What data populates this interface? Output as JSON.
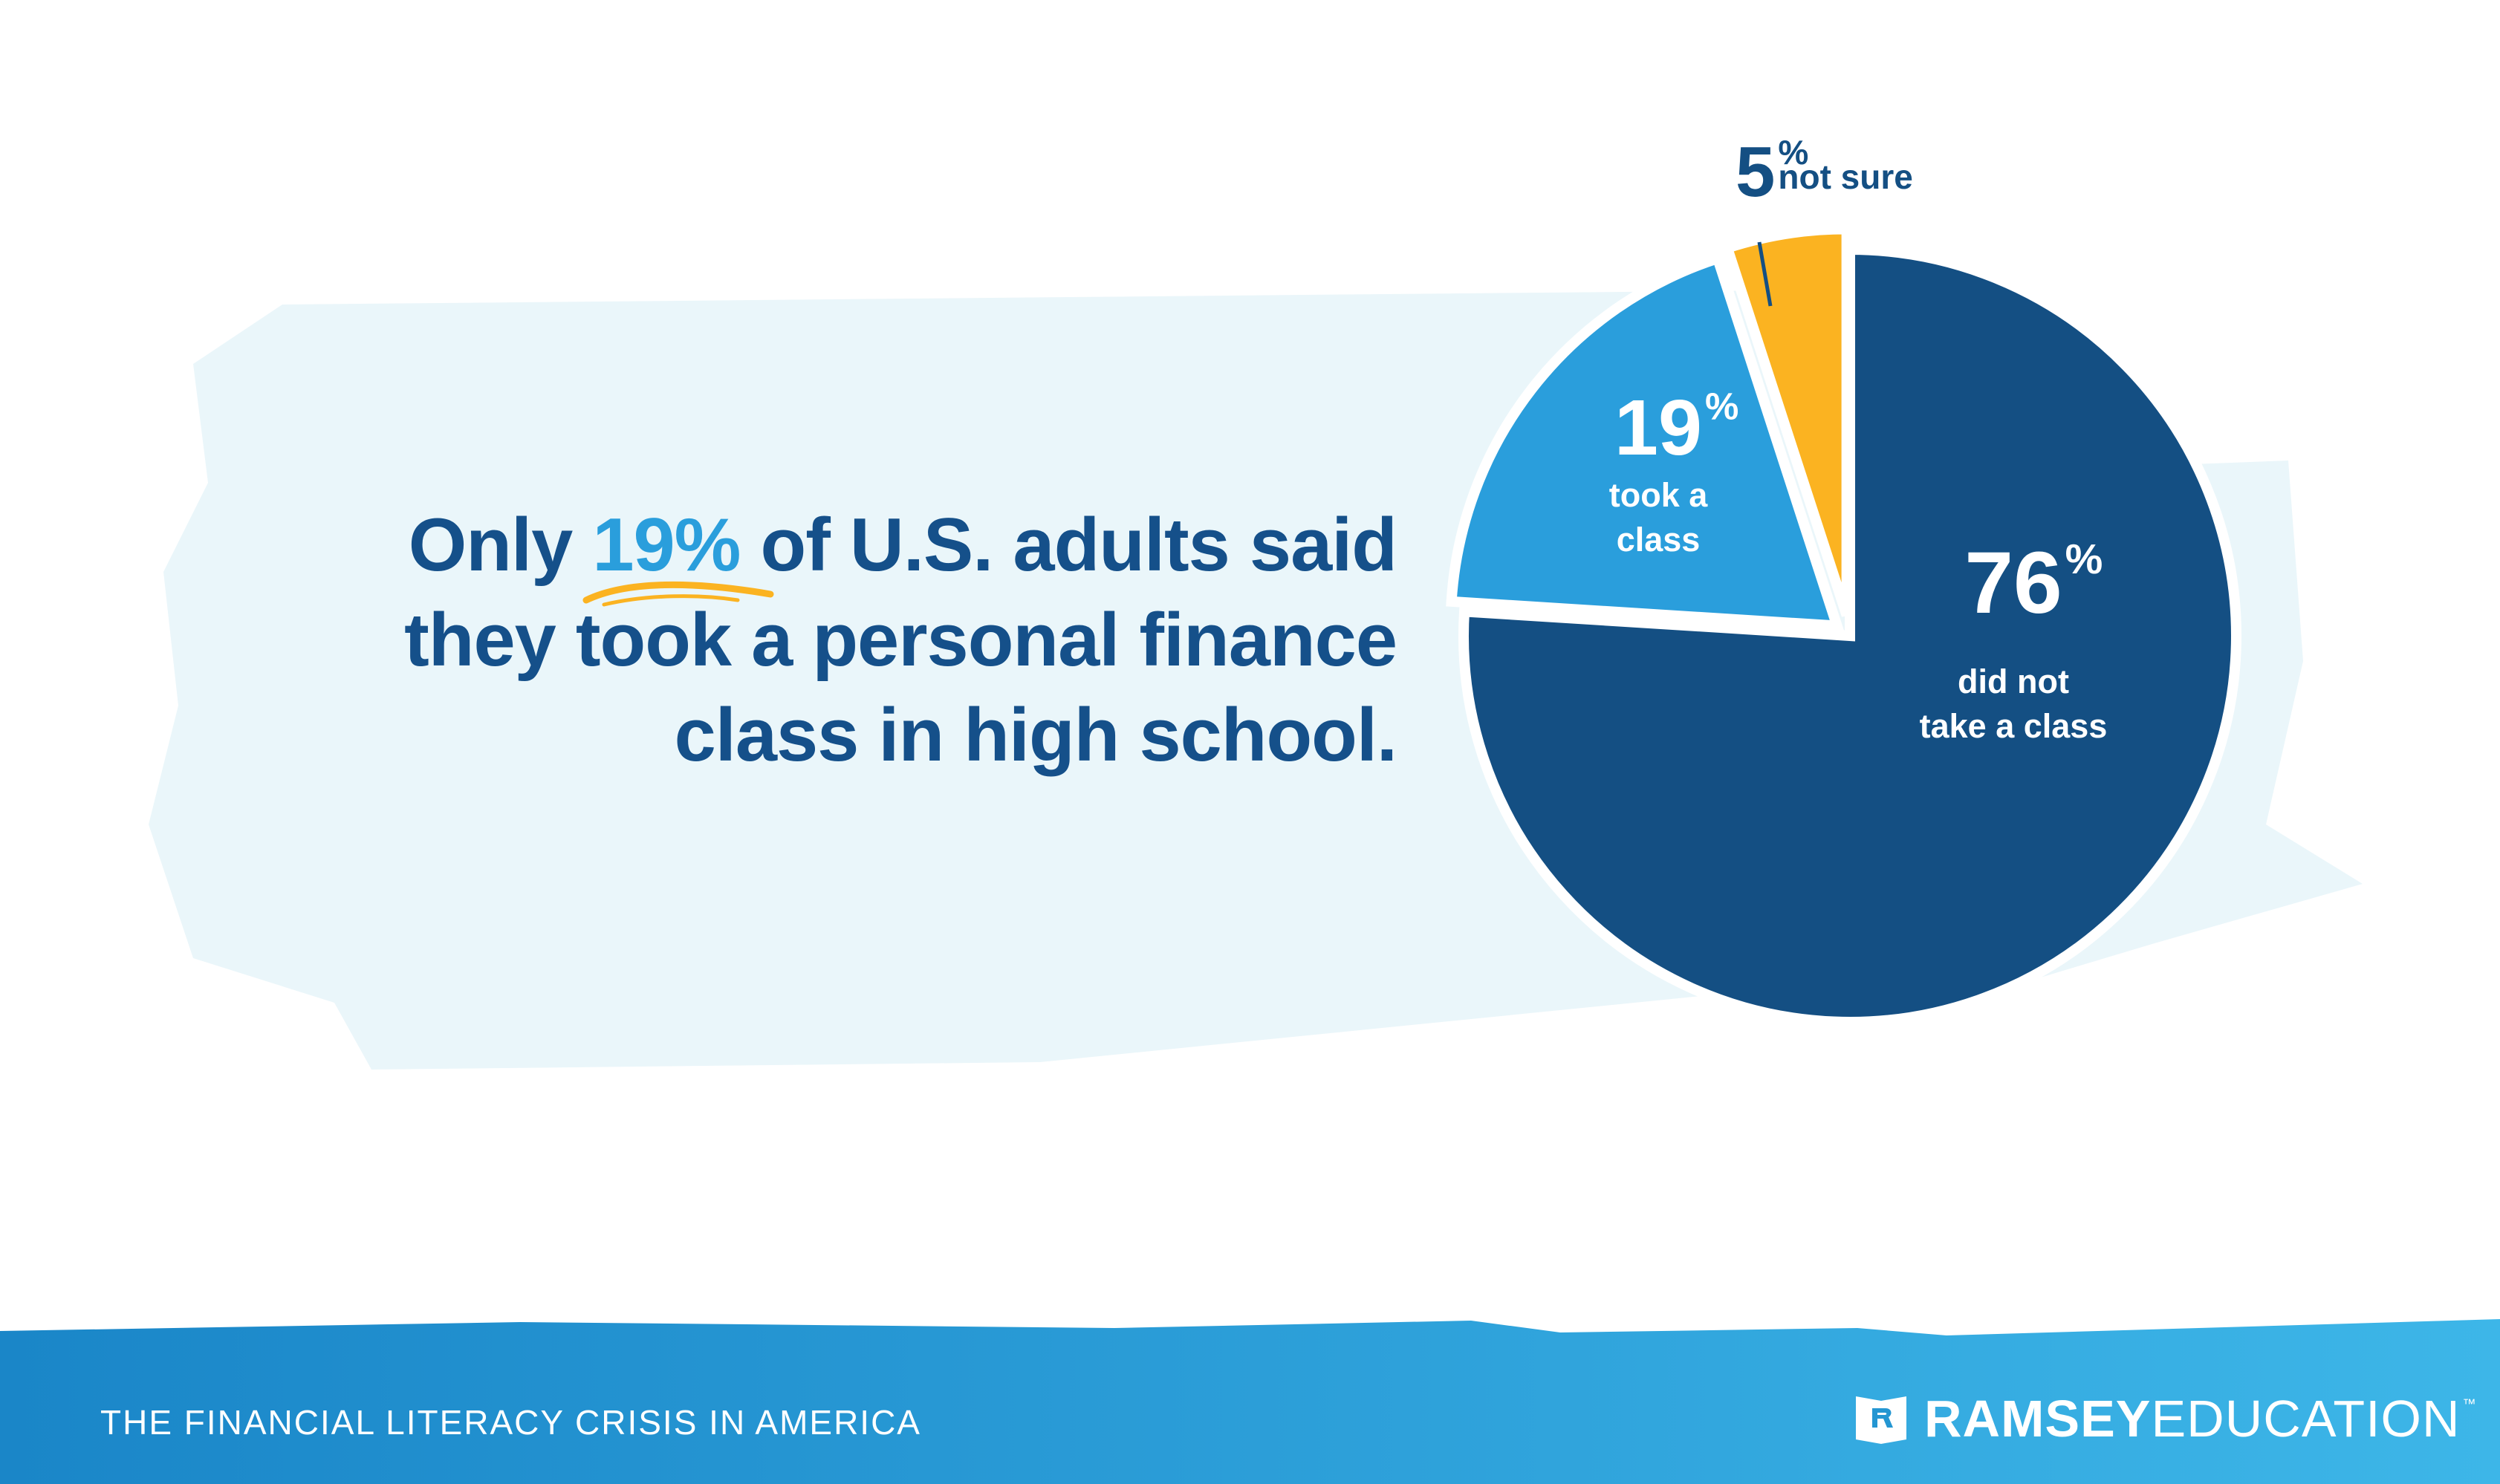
{
  "headline": {
    "before": "Only ",
    "highlight": "19%",
    "after_line1": " of U.S. adults said",
    "line2": "they took a personal finance",
    "line3": "class in high school."
  },
  "chart_data": {
    "type": "pie",
    "slices": [
      {
        "value": 76,
        "pct": "76",
        "line1": "did not",
        "line2": "take a class",
        "color": "#144f83"
      },
      {
        "value": 19,
        "pct": "19",
        "line1": "took a",
        "line2": "class",
        "color": "#2a9edc"
      },
      {
        "value": 5,
        "pct": "5",
        "line1": "not sure",
        "line2": "",
        "color": "#fbb321"
      }
    ],
    "percent_sign": "%"
  },
  "footer": {
    "title": "THE FINANCIAL LITERACY CRISIS IN AMERICA",
    "brand_bold": "RAMSEY",
    "brand_light": "EDUCATION",
    "brand_tm": "™"
  },
  "colors": {
    "brush": "#eaf6fa",
    "headline": "#15508a",
    "highlight": "#2a9edc",
    "underline": "#fbb321",
    "footer_start": "#1a86c8",
    "footer_end": "#3db6e8"
  }
}
